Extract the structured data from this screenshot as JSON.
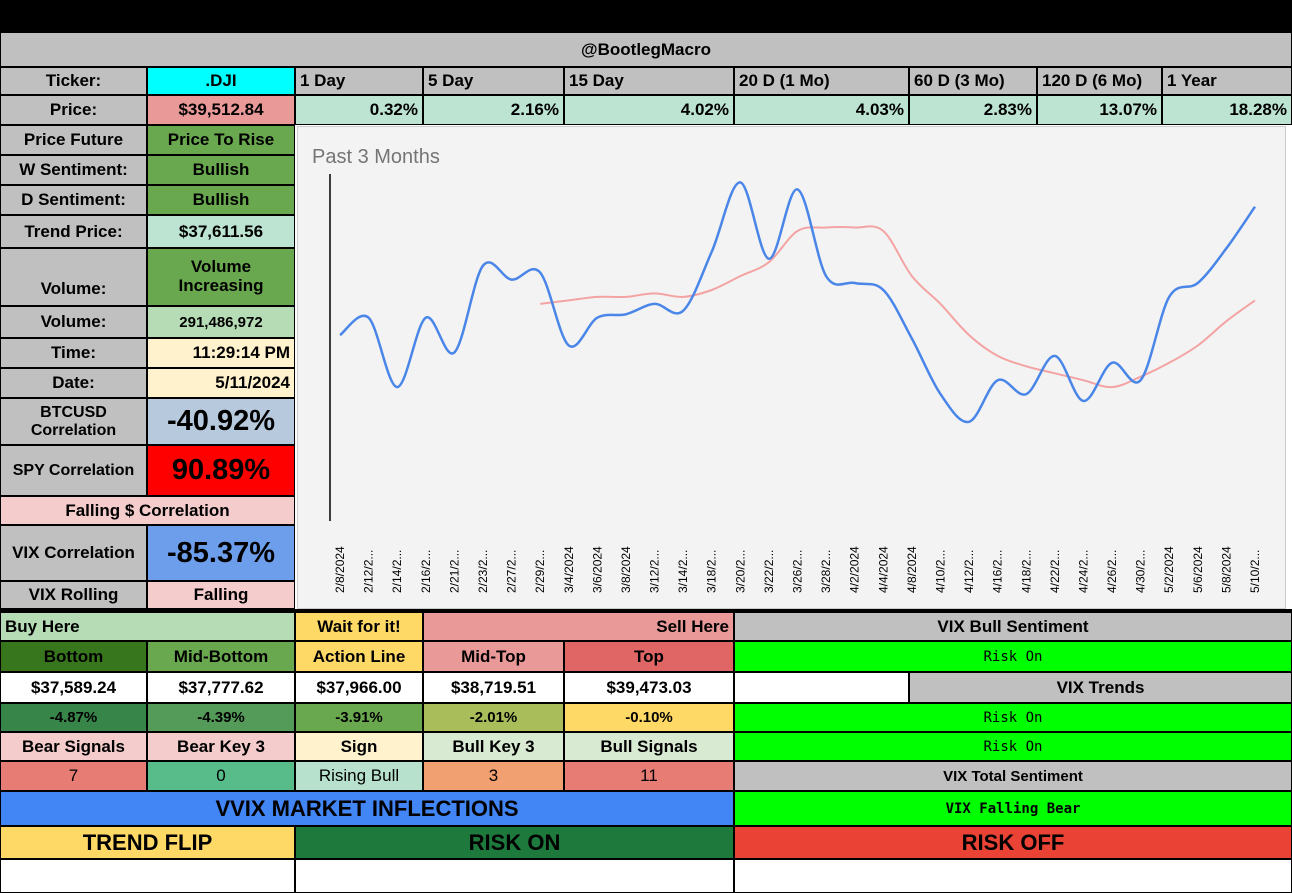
{
  "header": "@BootlegMacro",
  "ticker_label": "Ticker:",
  "ticker": ".DJI",
  "price_label": "Price:",
  "price": "$39,512.84",
  "periods": [
    {
      "label": "1 Day",
      "change": "0.32%"
    },
    {
      "label": "5 Day",
      "change": "2.16%"
    },
    {
      "label": "15 Day",
      "change": "4.02%"
    },
    {
      "label": "20 D (1 Mo)",
      "change": "4.03%"
    },
    {
      "label": "60 D (3 Mo)",
      "change": "2.83%"
    },
    {
      "label": "120 D (6 Mo)",
      "change": "13.07%"
    },
    {
      "label": "1 Year",
      "change": "18.28%"
    }
  ],
  "left": {
    "price_future_label": "Price Future",
    "price_future": "Price To Rise",
    "w_sentiment_label": "W Sentiment:",
    "w_sentiment": "Bullish",
    "d_sentiment_label": "D Sentiment:",
    "d_sentiment": "Bullish",
    "trend_price_label": "Trend Price:",
    "trend_price": "$37,611.56",
    "volume_trend_label": "Volume:",
    "volume_trend": "Volume Increasing",
    "volume_label": "Volume:",
    "volume": "291,486,972",
    "time_label": "Time:",
    "time": "11:29:14 PM",
    "date_label": "Date:",
    "date": "5/11/2024",
    "btc_label": "BTCUSD Correlation",
    "btc": "-40.92%",
    "spy_label": "SPY Correlation",
    "spy": "90.89%",
    "falling": "Falling $ Correlation",
    "vix_corr_label": "VIX Correlation",
    "vix_corr": "-85.37%",
    "vix_rolling_label": "VIX Rolling",
    "vix_rolling": "Falling"
  },
  "levels": {
    "buy_here": "Buy Here",
    "wait": "Wait for it!",
    "sell_here": "Sell Here",
    "headers": [
      "Bottom",
      "Mid-Bottom",
      "Action Line",
      "Mid-Top",
      "Top"
    ],
    "prices": [
      "$37,589.24",
      "$37,777.62",
      "$37,966.00",
      "$38,719.51",
      "$39,473.03"
    ],
    "pcts": [
      "-4.87%",
      "-4.39%",
      "-3.91%",
      "-2.01%",
      "-0.10%"
    ]
  },
  "signals": {
    "headers": [
      "Bear Signals",
      "Bear Key 3",
      "Sign",
      "Bull Key 3",
      "Bull Signals"
    ],
    "values": [
      "7",
      "0",
      "Rising Bull",
      "3",
      "11"
    ]
  },
  "vix": {
    "bull_sentiment_label": "VIX Bull Sentiment",
    "bull_sentiment": "Risk On",
    "trends_label": "VIX Trends",
    "trend1": "Risk On",
    "trend2": "Risk On",
    "total_label": "VIX Total Sentiment",
    "total": "VIX Falling Bear"
  },
  "vvix": {
    "title": "VVIX MARKET INFLECTIONS",
    "trend_flip": "TREND FLIP",
    "risk_on": "RISK ON",
    "risk_off": "RISK OFF"
  },
  "colors": {
    "price_line": "#4a86e8",
    "ma_line": "#f4a3a3",
    "ticker_bg": "#00ffff",
    "spy_bg": "#ff0000",
    "vix_corr_bg": "#6d9eeb",
    "btc_bg": "#b7c9dd",
    "vvix_bg": "#4285f4",
    "risk_off_bg": "#ea4335"
  },
  "chart_data": {
    "type": "line",
    "title": "Past 3 Months",
    "x": [
      "2/8/2024",
      "2/12/2...",
      "2/14/2...",
      "2/16/2...",
      "2/21/2...",
      "2/23/2...",
      "2/27/2...",
      "2/29/2...",
      "3/4/2024",
      "3/6/2024",
      "3/8/2024",
      "3/12/2...",
      "3/14/2...",
      "3/18/2...",
      "3/20/2...",
      "3/22/2...",
      "3/26/2...",
      "3/28/2...",
      "4/2/2024",
      "4/4/2024",
      "4/8/2024",
      "4/10/2...",
      "4/12/2...",
      "4/16/2...",
      "4/18/2...",
      "4/22/2...",
      "4/24/2...",
      "4/26/2...",
      "4/30/2...",
      "5/2/2024",
      "5/6/2024",
      "5/8/2024",
      "5/10/2..."
    ],
    "ylim": [
      0,
      100
    ],
    "grid": false,
    "series": [
      {
        "values": [
          53,
          58,
          38,
          58,
          48,
          73,
          69,
          71,
          50,
          58,
          59,
          62,
          60,
          77,
          97,
          75,
          95,
          70,
          68,
          66,
          52,
          36,
          28,
          40,
          36,
          47,
          34,
          45,
          40,
          64,
          68,
          78,
          90
        ]
      },
      {
        "values": [
          null,
          null,
          null,
          null,
          null,
          null,
          null,
          62,
          63,
          64,
          64,
          65,
          64,
          66,
          70,
          74,
          83,
          84,
          84,
          83,
          70,
          62,
          53,
          47,
          44,
          42,
          40,
          38,
          41,
          45,
          50,
          57,
          63
        ]
      }
    ]
  }
}
